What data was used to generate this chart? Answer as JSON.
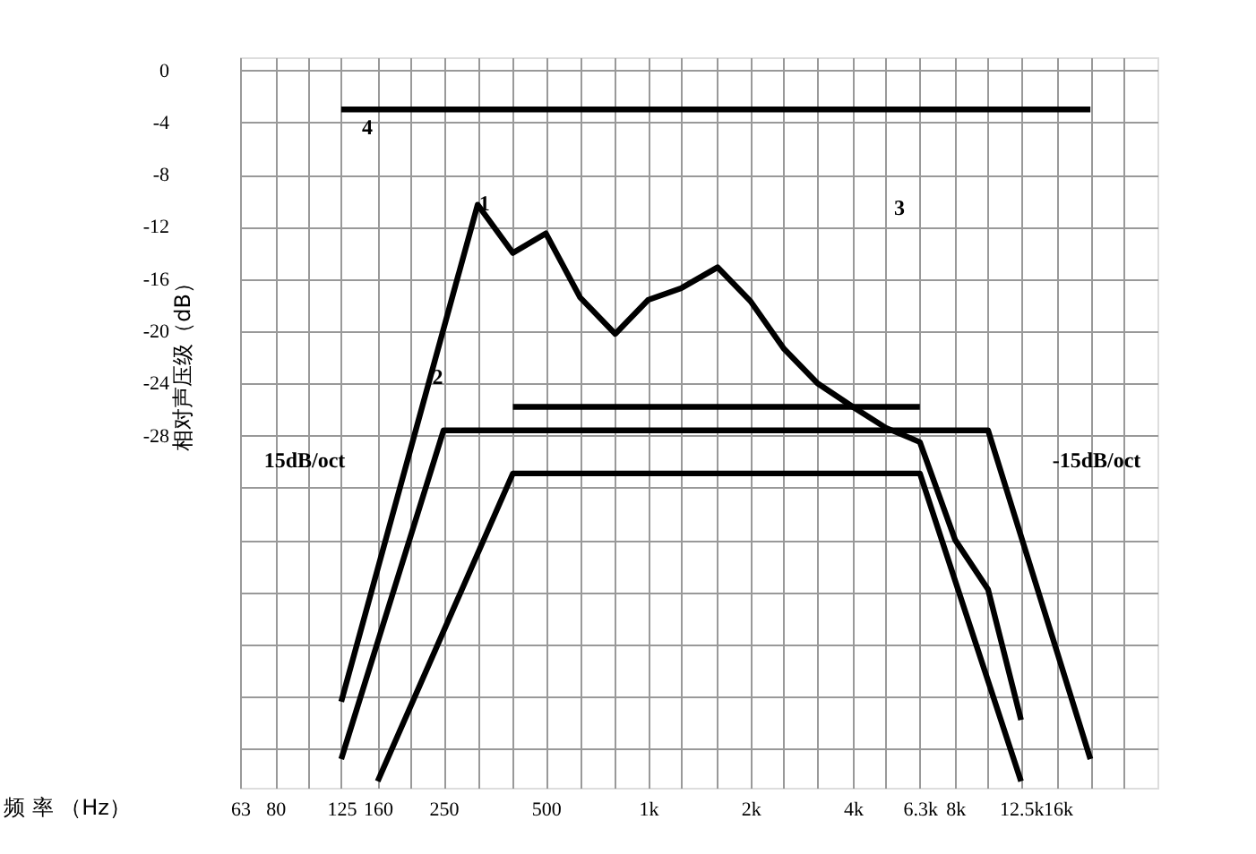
{
  "chart_data": {
    "type": "line",
    "xlabel": "频  率 （Hz）",
    "ylabel": "相对声压级（dB）",
    "log": "x",
    "xlim": [
      63,
      31500
    ],
    "xticks": [
      63,
      80,
      {
        "value": 100,
        "label": null
      },
      125,
      160,
      {
        "value": 200,
        "label": null
      },
      250,
      {
        "value": 315,
        "label": null
      },
      {
        "value": 400,
        "label": null
      },
      500,
      {
        "value": 630,
        "label": null
      },
      {
        "value": 800,
        "label": null
      },
      {
        "value": 1000,
        "label": "1k"
      },
      {
        "value": 1250,
        "label": null
      },
      {
        "value": 1600,
        "label": null
      },
      {
        "value": 2000,
        "label": "2k"
      },
      {
        "value": 2500,
        "label": null
      },
      {
        "value": 3150,
        "label": null
      },
      {
        "value": 4000,
        "label": "4k"
      },
      {
        "value": 5000,
        "label": null
      },
      {
        "value": 6300,
        "label": "6.3k"
      },
      {
        "value": 8000,
        "label": "8k"
      },
      {
        "value": 10000,
        "label": null
      },
      {
        "value": 12500,
        "label": "12.5k"
      },
      {
        "value": 16000,
        "label": "16k"
      },
      {
        "value": 20000,
        "label": null
      },
      {
        "value": 25000,
        "label": null
      }
    ],
    "ylim": [
      -55,
      1
    ],
    "yticks": [
      0,
      -4,
      -8,
      -12,
      -16,
      -20,
      -24,
      -28,
      {
        "value": -32,
        "label": null
      },
      {
        "value": -36,
        "label": null
      },
      {
        "value": -40,
        "label": null
      },
      {
        "value": -44,
        "label": null
      },
      {
        "value": -48,
        "label": null
      },
      {
        "value": -52,
        "label": null
      }
    ],
    "grid": true,
    "marker": "none",
    "line_style": "solid",
    "series": [
      {
        "color": "#000000",
        "x": [
          125,
          20000
        ],
        "values": [
          -3,
          -3
        ]
      },
      {
        "color": "#000000",
        "x": [
          125,
          315,
          400,
          500,
          630,
          800,
          1000,
          1250,
          1600,
          2000,
          2500,
          3150,
          4000,
          5000,
          6300,
          8000,
          10000,
          12500
        ],
        "values": [
          -48.4,
          -10.3,
          -14,
          -12.5,
          -17.4,
          -20.2,
          -17.6,
          -16.7,
          -15.1,
          -17.7,
          -21.3,
          -24,
          -25.8,
          -27.4,
          -28.5,
          -36,
          -39.8,
          -49.8
        ]
      },
      {
        "color": "#000000",
        "x": [
          125,
          250,
          10000,
          20000
        ],
        "values": [
          -52.8,
          -27.6,
          -27.6,
          -52.8
        ]
      },
      {
        "color": "#000000",
        "x": [
          400,
          6300
        ],
        "values": [
          -25.8,
          -25.8
        ]
      },
      {
        "color": "#000000",
        "x": [
          160,
          400,
          6300,
          12500
        ],
        "values": [
          -54.5,
          -30.9,
          -30.9,
          -54.5
        ]
      }
    ],
    "annotations": [
      "4",
      {
        "text": "1",
        "x": 330,
        "y": -10.2
      },
      {
        "text": "2",
        "x": 240,
        "y": -23.5
      },
      "3",
      "15dB/oct",
      "-15dB/oct"
    ]
  }
}
